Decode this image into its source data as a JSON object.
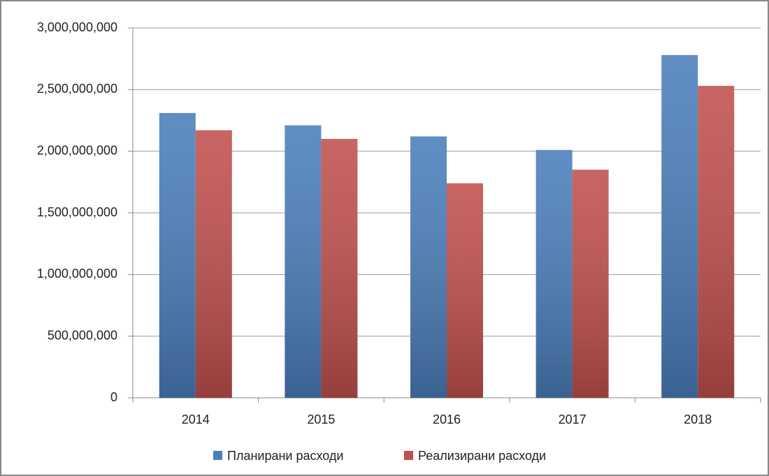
{
  "chart_data": {
    "type": "bar",
    "categories": [
      "2014",
      "2015",
      "2016",
      "2017",
      "2018"
    ],
    "series": [
      {
        "name": "Планирани расходи",
        "color": "#4a7ebb",
        "values": [
          2310000000,
          2210000000,
          2120000000,
          2010000000,
          2780000000
        ]
      },
      {
        "name": "Реализирани расходи",
        "color": "#c0504d",
        "values": [
          2170000000,
          2100000000,
          1740000000,
          1850000000,
          2530000000
        ]
      }
    ],
    "ylim": [
      0,
      3000000000
    ],
    "yticks": [
      0,
      {
        "value": 500000000,
        "label": "500,000,000"
      },
      {
        "value": 1000000000,
        "label": "1,000,000,000"
      },
      {
        "value": 1500000000,
        "label": "1,500,000,000"
      },
      {
        "value": 2000000000,
        "label": "2,000,000,000"
      },
      {
        "value": 2500000000,
        "label": "2,500,000,000"
      },
      {
        "value": 3000000000,
        "label": "3,000,000,000"
      }
    ],
    "grid": true,
    "legend": "bottom"
  }
}
